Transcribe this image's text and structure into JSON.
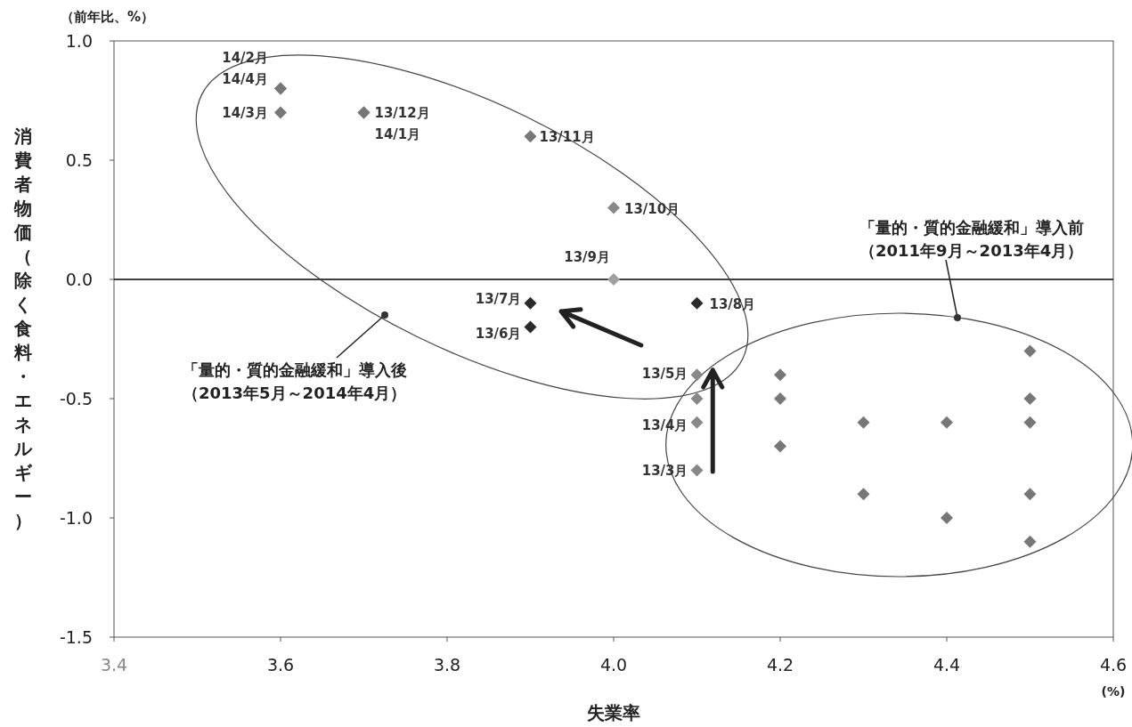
{
  "chart_data": {
    "type": "scatter",
    "xlabel": "失業率",
    "ylabel": "消費者物価（除く食料・エネルギー）",
    "xlim": [
      3.4,
      4.6
    ],
    "ylim": [
      -1.5,
      1.0
    ],
    "xticks": [
      {
        "value": 3.4,
        "label": "3.4"
      },
      {
        "value": 3.6,
        "label": "3.6"
      },
      {
        "value": 3.8,
        "label": "3.8"
      },
      {
        "value": 4.0,
        "label": "4.0"
      },
      {
        "value": 4.2,
        "label": "4.2"
      },
      {
        "value": 4.4,
        "label": "4.4"
      },
      {
        "value": 4.6,
        "label": "4.6"
      }
    ],
    "yticks": [
      {
        "value": 1.0,
        "label": "1.0"
      },
      {
        "value": 0.5,
        "label": "0.5"
      },
      {
        "value": 0,
        "label": "0.0"
      },
      {
        "value": -0.5,
        "label": "-0.5"
      },
      {
        "value": -1.0,
        "label": "-1.0"
      },
      {
        "value": -1.5,
        "label": "-1.5"
      }
    ],
    "marker": "diamond",
    "grid": false,
    "series": [
      {
        "x": [
          3.6,
          3.6,
          3.6,
          3.7,
          3.7,
          3.9,
          4.0,
          4.0,
          3.9,
          3.9,
          4.1,
          4.1,
          4.1,
          4.1,
          4.1,
          4.2,
          4.2,
          4.2,
          4.3,
          4.3,
          4.4,
          4.4,
          4.5,
          4.5,
          4.5,
          4.5,
          4.5
        ],
        "values": [
          0.8,
          0.8,
          0.7,
          0.7,
          0.7,
          0.6,
          0.3,
          0.0,
          -0.1,
          -0.2,
          -0.1,
          -0.4,
          -0.5,
          -0.6,
          -0.8,
          -0.4,
          -0.5,
          -0.7,
          -0.6,
          -0.9,
          -0.6,
          -1.0,
          -0.3,
          -0.5,
          -0.6,
          -0.9,
          -1.1
        ],
        "colors": [
          "#777777",
          "#777777",
          "#777777",
          "#777777",
          "#777777",
          "#777777",
          "#888888",
          "#a0a0a0",
          "#2b2b2b",
          "#2b2b2b",
          "#2b2b2b",
          "#888888",
          "#888888",
          "#888888",
          "#888888",
          "#777777",
          "#777777",
          "#777777",
          "#777777",
          "#777777",
          "#777777",
          "#777777",
          "#777777",
          "#777777",
          "#777777",
          "#777777",
          "#777777"
        ],
        "value_labels": [
          "14/2月",
          "14/4月",
          "14/3月",
          "13/12月",
          "14/1月",
          "13/11月",
          "13/10月",
          "13/9月",
          "13/7月",
          "13/6月",
          "13/8月",
          "13/5月",
          null,
          "13/4月",
          "13/3月",
          null,
          null,
          null,
          null,
          null,
          null,
          null,
          null,
          null,
          null,
          null,
          null
        ]
      }
    ],
    "ref_lines": [
      {
        "axis": "y",
        "value": 0,
        "color": "#000000"
      }
    ],
    "annotations": [
      "（前年比、%）",
      "(%)",
      "「量的・質的金融緩和」導入前",
      "（2011年9月～2013年4月）",
      "「量的・質的金融緩和」導入後",
      "（2013年5月～2014年4月）"
    ]
  }
}
